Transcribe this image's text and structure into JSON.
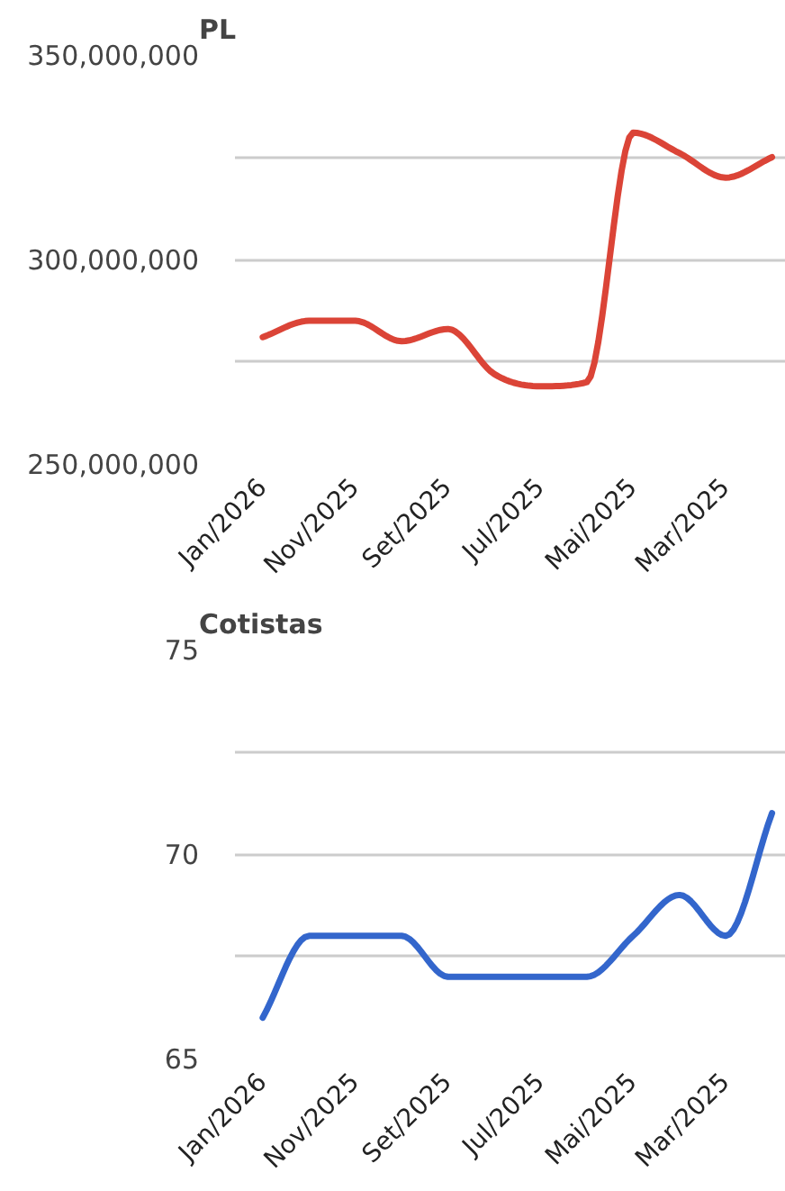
{
  "chart_data": [
    {
      "type": "line",
      "title": "PL",
      "categories": [
        "Jan/2026",
        null,
        "Nov/2025",
        null,
        "Set/2025",
        null,
        "Jul/2025",
        null,
        "Mai/2025",
        null,
        "Mar/2025",
        null
      ],
      "series": [
        {
          "color": "#db4437",
          "values": [
            281000000,
            285000000,
            285000000,
            280000000,
            283000000,
            272000000,
            269000000,
            270000000,
            331000000,
            326000000,
            320000000,
            325000000
          ]
        }
      ],
      "ylim": [
        250000000,
        350000000
      ],
      "yticks": [
        {
          "value": 250000000,
          "label": "250,000,000"
        },
        {
          "value": 275000000,
          "label": null
        },
        {
          "value": 300000000,
          "label": "300,000,000"
        },
        {
          "value": 325000000,
          "label": null
        },
        {
          "value": 350000000,
          "label": "350,000,000"
        }
      ],
      "grid": "y",
      "marker": "none",
      "line_style": "solid"
    },
    {
      "type": "line",
      "title": "Cotistas",
      "categories": [
        "Jan/2026",
        null,
        "Nov/2025",
        null,
        "Set/2025",
        null,
        "Jul/2025",
        null,
        "Mai/2025",
        null,
        "Mar/2025",
        null
      ],
      "series": [
        {
          "color": "#3366cc",
          "values": [
            66,
            68,
            68,
            68,
            67,
            67,
            67,
            67,
            68,
            69,
            68,
            71
          ]
        }
      ],
      "ylim": [
        65,
        75
      ],
      "yticks": [
        65,
        {
          "value": 67.5,
          "label": null
        },
        70,
        {
          "value": 72.5,
          "label": null
        },
        75
      ],
      "grid": "y",
      "marker": "none",
      "line_style": "solid"
    }
  ]
}
